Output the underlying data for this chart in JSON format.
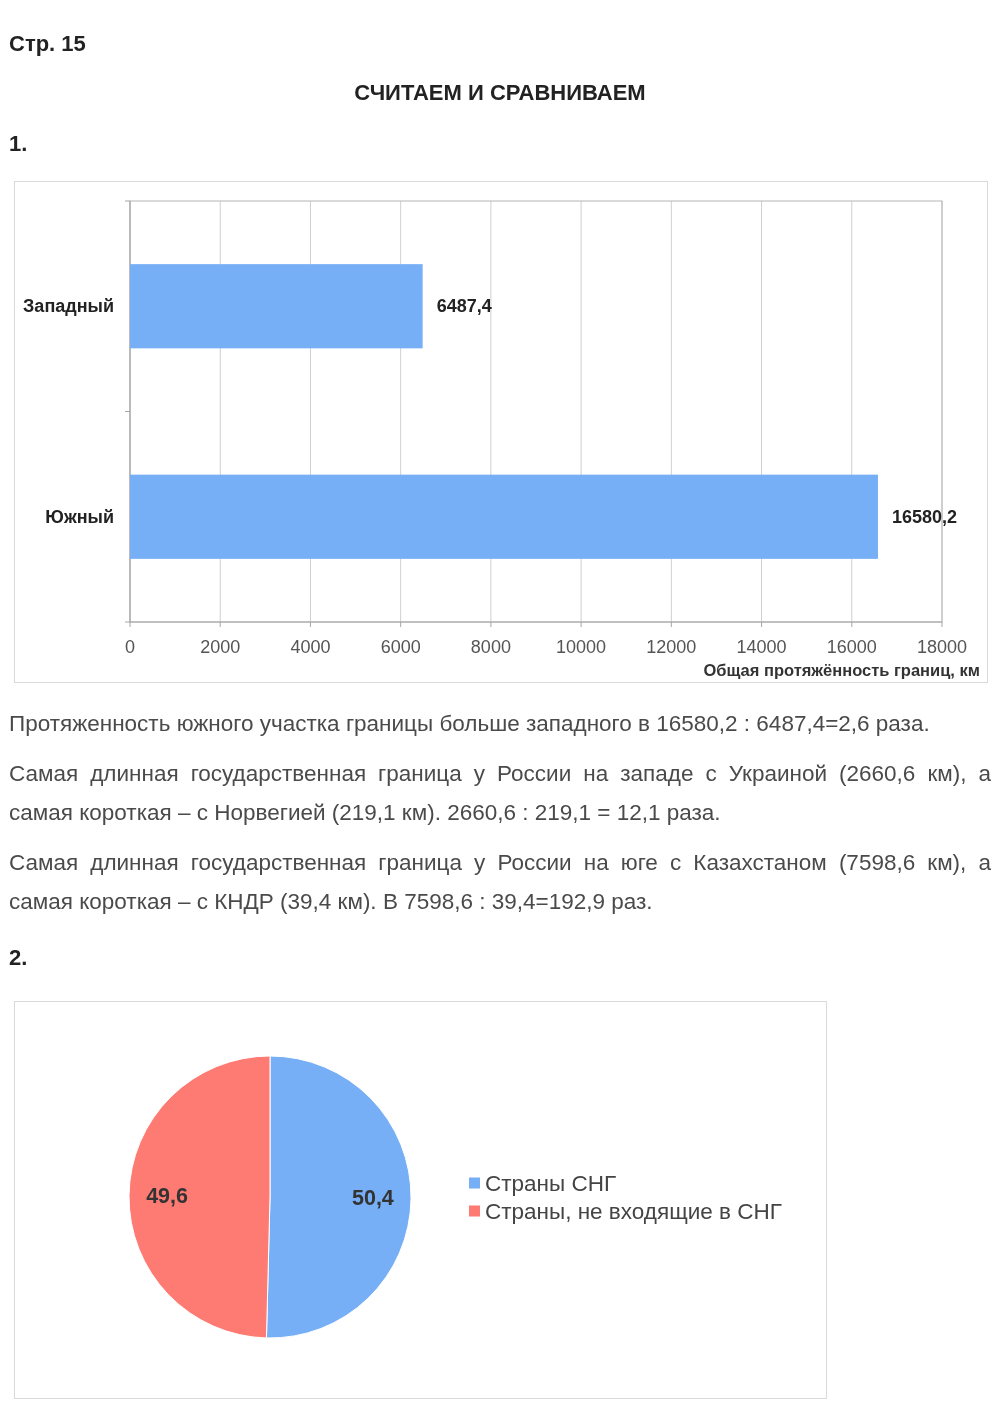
{
  "chart_data": [
    {
      "type": "bar",
      "orientation": "horizontal",
      "title": "СЧИТАЕМ И СРАВНИВАЕМ",
      "categories": [
        "Западный",
        "Южный"
      ],
      "values": [
        6487.4,
        16580.2
      ],
      "value_labels": [
        "6487,4",
        "16580,2"
      ],
      "color": "#76aff6",
      "xlabel": "Общая протяжённость границ, км",
      "xlim": [
        0,
        18000
      ],
      "xticks": [
        0,
        2000,
        4000,
        6000,
        8000,
        10000,
        12000,
        14000,
        16000,
        18000
      ],
      "grid": "x",
      "annotations": [
        "Стр. 15",
        "1.",
        "Протяженность южного участка границы больше западного в 16580,2 : 6487,4=2,6 раза.",
        "Самая длинная государственная граница у России на западе с Украиной (2660,6 км), а самая короткая – с Норвегией (219,1 км). 2660,6 : 219,1 = 12,1 раза.",
        "Самая длинная государственная граница у России на юге с Казахстаном (7598,6 км), а самая короткая – с КНДР (39,4 км). В 7598,6 : 39,4=192,9 раз."
      ]
    },
    {
      "type": "pie",
      "categories": [
        "Страны СНГ",
        "Страны, не входящие в СНГ"
      ],
      "values": [
        50.4,
        49.6
      ],
      "value_labels": [
        "50,4",
        "49,6"
      ],
      "colors": [
        "#76aff6",
        "#fe7b73"
      ],
      "legend": "right",
      "annotations": [
        "2."
      ]
    }
  ]
}
